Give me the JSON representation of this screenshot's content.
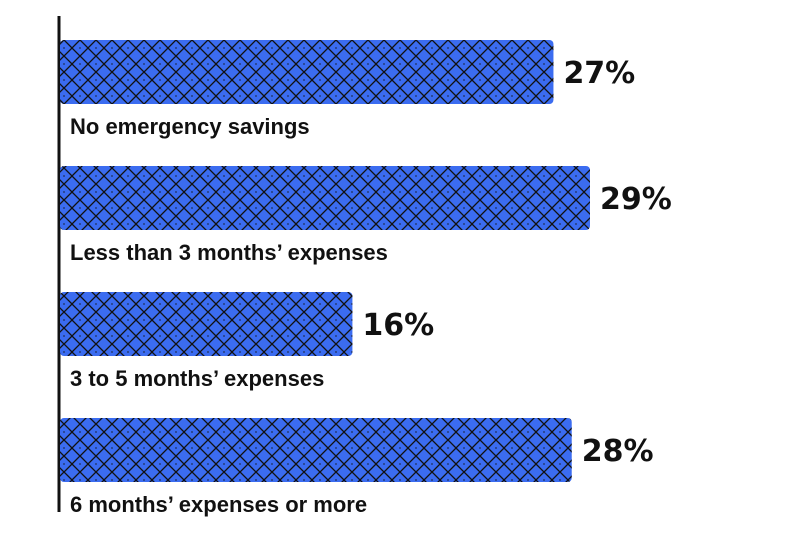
{
  "chart_data": {
    "type": "bar",
    "orientation": "horizontal",
    "categories": [
      "No emergency savings",
      "Less than 3 months’ expenses",
      "3 to 5 months’ expenses",
      "6 months’ expenses or more"
    ],
    "values": [
      27,
      29,
      16,
      28
    ],
    "value_labels": [
      "27%",
      "29%",
      "16%",
      "28%"
    ],
    "unit": "%",
    "xlim": [
      0,
      29
    ],
    "bar_color": "#3b6cf0",
    "pattern_color": "#111111",
    "text_color": "#111111",
    "title": "",
    "xlabel": "",
    "ylabel": "",
    "grid": false,
    "legend": "none"
  }
}
